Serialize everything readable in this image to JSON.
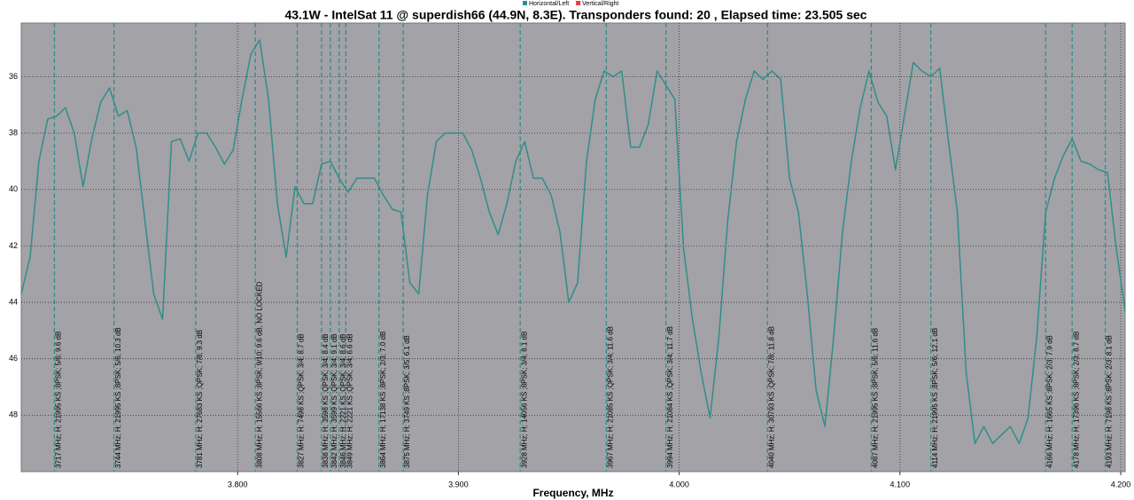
{
  "chart_data": {
    "type": "line",
    "title": "43.1W - IntelSat 11 @ superdish66 (44.9N, 8.3E). Transponders found: 20 , Elapsed time: 23.505 sec",
    "x_label": "Frequency, MHz",
    "xlim": [
      3702,
      4202
    ],
    "xticks": [
      {
        "value": 3800,
        "label": "3.800"
      },
      {
        "value": 3900,
        "label": "3.900"
      },
      {
        "value": 4000,
        "label": "4.000"
      },
      {
        "value": 4100,
        "label": "4.100"
      },
      {
        "value": 4200,
        "label": "4.200"
      }
    ],
    "ylim": [
      34.1,
      50
    ],
    "y_inverted": true,
    "yticks": [
      36,
      38,
      40,
      42,
      44,
      46,
      48
    ],
    "grid": true,
    "legend_position": "top",
    "x": [
      3702,
      3706,
      3710,
      3714,
      3718,
      3722,
      3726,
      3730,
      3734,
      3738,
      3742,
      3746,
      3750,
      3754,
      3758,
      3762,
      3766,
      3770,
      3774,
      3778,
      3782,
      3786,
      3790,
      3794,
      3798,
      3802,
      3806,
      3810,
      3814,
      3818,
      3822,
      3826,
      3830,
      3834,
      3838,
      3842,
      3846,
      3850,
      3854,
      3858,
      3862,
      3866,
      3870,
      3874,
      3878,
      3882,
      3886,
      3890,
      3894,
      3898,
      3902,
      3906,
      3910,
      3914,
      3918,
      3922,
      3926,
      3930,
      3934,
      3938,
      3942,
      3946,
      3950,
      3954,
      3958,
      3962,
      3966,
      3970,
      3974,
      3978,
      3982,
      3986,
      3990,
      3994,
      3998,
      4002,
      4006,
      4010,
      4014,
      4018,
      4022,
      4026,
      4030,
      4034,
      4038,
      4042,
      4046,
      4050,
      4054,
      4058,
      4062,
      4066,
      4070,
      4074,
      4078,
      4082,
      4086,
      4090,
      4094,
      4098,
      4102,
      4106,
      4110,
      4114,
      4118,
      4122,
      4126,
      4130,
      4134,
      4138,
      4142,
      4146,
      4150,
      4154,
      4158,
      4162,
      4166,
      4170,
      4174,
      4178,
      4182,
      4186,
      4190,
      4194,
      4198,
      4202
    ],
    "series": [
      {
        "name": "Horizontal/Left",
        "color": "#2e8f8a",
        "values": [
          43.7,
          42.4,
          39.0,
          37.5,
          37.4,
          37.1,
          38.0,
          39.9,
          38.2,
          36.9,
          36.4,
          37.4,
          37.2,
          38.5,
          41.1,
          43.7,
          44.6,
          38.3,
          38.2,
          39.0,
          38.0,
          38.0,
          38.5,
          39.1,
          38.6,
          36.8,
          35.2,
          34.7,
          36.8,
          40.5,
          42.4,
          39.9,
          40.5,
          40.5,
          39.1,
          39.0,
          39.6,
          40.1,
          39.6,
          39.6,
          39.6,
          40.2,
          40.7,
          40.8,
          43.3,
          43.7,
          40.2,
          38.3,
          38.0,
          38.0,
          38.0,
          38.6,
          39.6,
          40.8,
          41.6,
          40.5,
          39.0,
          38.3,
          39.6,
          39.6,
          40.2,
          41.5,
          44.0,
          43.3,
          39.0,
          36.8,
          35.8,
          36.0,
          35.8,
          38.5,
          38.5,
          37.7,
          35.8,
          36.3,
          36.8,
          42.1,
          44.6,
          46.5,
          48.1,
          45.2,
          41.1,
          38.3,
          36.8,
          35.8,
          36.1,
          35.8,
          36.1,
          39.6,
          40.8,
          43.7,
          47.1,
          48.4,
          45.2,
          41.5,
          39.0,
          37.1,
          35.8,
          36.9,
          37.4,
          39.3,
          37.4,
          35.5,
          35.8,
          36.0,
          35.7,
          38.3,
          40.8,
          46.5,
          49.0,
          48.4,
          49.0,
          48.7,
          48.4,
          49.0,
          48.1,
          45.2,
          40.8,
          39.6,
          38.8,
          38.2,
          39.0,
          39.1,
          39.3,
          39.4,
          42.1,
          44.3
        ]
      },
      {
        "name": "Vertical/Right",
        "color": "#e8403a",
        "values": [
          null,
          null,
          null,
          null,
          null,
          null,
          null,
          null,
          null,
          null,
          null,
          null,
          null,
          null,
          null,
          null,
          null,
          null,
          null,
          null,
          null,
          null,
          null,
          null,
          null,
          null,
          null,
          null,
          null,
          null,
          null,
          null,
          null,
          null,
          null,
          null,
          null,
          null,
          null,
          null,
          null,
          null,
          null,
          null,
          null,
          null,
          null,
          null,
          null,
          null,
          null,
          null,
          null,
          null,
          null,
          null,
          null,
          null,
          null,
          null,
          null,
          null,
          null,
          null,
          null,
          null,
          null,
          null,
          null,
          null,
          null,
          null,
          null,
          null,
          null,
          null,
          null,
          null,
          null,
          null,
          null,
          null,
          null,
          null,
          null,
          null,
          null,
          null,
          null,
          null,
          null,
          null,
          null,
          null,
          null,
          null,
          null,
          null,
          null,
          null,
          null,
          null,
          null,
          null,
          null,
          null,
          null,
          null,
          null,
          null,
          null,
          null,
          null,
          null,
          null,
          null,
          null,
          null,
          null,
          null,
          null,
          null,
          null,
          null,
          null,
          null
        ]
      }
    ],
    "marker_color": "#2e8f8a",
    "markers": [
      {
        "x": 3717,
        "label": "3717 MHz; H; 21995 KS ;8PSK; 5/6; 9.6 dB"
      },
      {
        "x": 3744,
        "label": "3744 MHz; H; 21995 KS ;8PSK; 5/6; 10.3 dB"
      },
      {
        "x": 3781,
        "label": "3781 MHz; H; 27683 KS ;QPSK; 7/8; 9.3 dB"
      },
      {
        "x": 3808,
        "label": "3808 MHz; H; 15566 KS ;8PSK; 9/10; 9.6 dB, NO LOCKED"
      },
      {
        "x": 3827,
        "label": "3827 MHz; H; 7498 KS ;QPSK; 3/4; 8.7 dB"
      },
      {
        "x": 3838,
        "label": "3838 MHz; H; 3598 KS ;QPSK; 3/4; 8.4 dB"
      },
      {
        "x": 3842,
        "label": "3842 MHz; H; 3599 KS ;QPSK; 3/4; 9.1 dB"
      },
      {
        "x": 3846,
        "label": "3846 MHz; H; 2221 KS ;QPSK; 3/4; 8.6 dB"
      },
      {
        "x": 3849,
        "label": "3849 MHz; H; 2221 KS ;QPSK; 3/4; 6.6 dB"
      },
      {
        "x": 3864,
        "label": "3864 MHz; H; 17138 KS ;8PSK; 2/3; 7.0 dB"
      },
      {
        "x": 3875,
        "label": "3875 MHz; H; 3749 KS ;8PSK; 3/5; 6.1 dB"
      },
      {
        "x": 3928,
        "label": "3928 MHz; H; 14056 KS ;8PSK; 3/4; 8.1 dB"
      },
      {
        "x": 3967,
        "label": "3967 MHz; H; 21085 KS ;QPSK; 3/4; 11.6 dB"
      },
      {
        "x": 3994,
        "label": "3994 MHz; H; 21084 KS ;QPSK; 3/4; 11.7 dB"
      },
      {
        "x": 4040,
        "label": "4040 MHz; H; 30793 KS ;QPSK; 7/8; 11.8 dB"
      },
      {
        "x": 4087,
        "label": "4087 MHz; H; 21995 KS ;8PSK; 5/6; 11.6 dB"
      },
      {
        "x": 4114,
        "label": "4114 MHz; H; 21995 KS ;8PSK; 5/6; 12.1 dB"
      },
      {
        "x": 4166,
        "label": "4166 MHz; H; 1665 KS ;8PSK; 2/3; 7.9 dB"
      },
      {
        "x": 4178,
        "label": "4178 MHz; H; 17396 KS ;8PSK; 2/3; 8.7 dB"
      },
      {
        "x": 4193,
        "label": "4193 MHz; H; 7198 KS ;8PSK; 2/3; 8.1 dB"
      }
    ]
  }
}
